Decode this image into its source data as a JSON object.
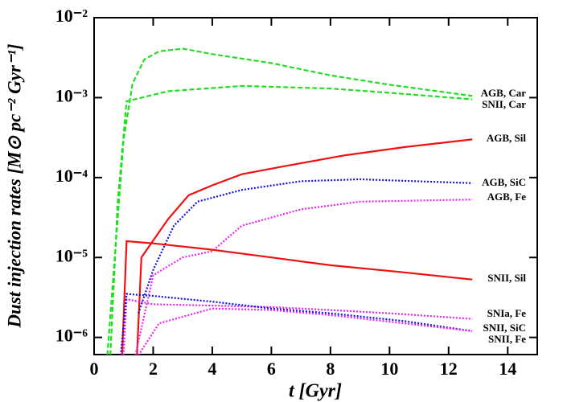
{
  "chart_data": {
    "type": "line",
    "x_label": "t [Gyr]",
    "y_label": "Dust injection rates [M⊙ pc⁻² Gyr⁻¹]",
    "xlim": [
      0,
      15
    ],
    "xticks": [
      0,
      2,
      4,
      6,
      8,
      10,
      12,
      14
    ],
    "ylim": [
      6.1e-07,
      0.01
    ],
    "log_y": true,
    "yticks": [
      {
        "value": 0.01,
        "label": "10⁻²"
      },
      {
        "value": 0.001,
        "label": "10⁻³"
      },
      {
        "value": 0.0001,
        "label": "10⁻⁴"
      },
      {
        "value": 1e-05,
        "label": "10⁻⁵"
      },
      {
        "value": 1e-06,
        "label": "10⁻⁶"
      }
    ],
    "series": [
      {
        "name": "AGB, Car",
        "color": "#22dd22",
        "line_style": "dashed",
        "x": [
          0.45,
          0.7,
          1.0,
          1.3,
          1.7,
          2.2,
          3,
          4,
          6,
          8,
          10,
          12.8
        ],
        "values": [
          6e-07,
          1e-05,
          0.0003,
          0.0015,
          0.003,
          0.0038,
          0.0041,
          0.0035,
          0.0027,
          0.0019,
          0.00145,
          0.00105
        ]
      },
      {
        "name": "SNII, Car",
        "color": "#22dd22",
        "line_style": "dashed",
        "x": [
          0.55,
          0.8,
          1.1,
          2.5,
          5,
          8,
          10,
          12.8
        ],
        "values": [
          6e-07,
          5e-05,
          0.0009,
          0.0012,
          0.0014,
          0.0013,
          0.00115,
          0.00095
        ]
      },
      {
        "name": "AGB, Sil",
        "color": "#ee1111",
        "line_style": "solid",
        "x": [
          1.45,
          1.6,
          2.5,
          3.2,
          4,
          5,
          6.5,
          8.5,
          10.5,
          12.8
        ],
        "values": [
          6e-07,
          1e-05,
          3e-05,
          6e-05,
          8e-05,
          0.00011,
          0.00014,
          0.00019,
          0.00024,
          0.0003
        ]
      },
      {
        "name": "AGB, SiC",
        "color": "#1111dd",
        "line_style": "dotted",
        "x": [
          1.5,
          2,
          2.7,
          3.5,
          5,
          7,
          9,
          12.8
        ],
        "values": [
          2e-06,
          7e-06,
          2.5e-05,
          5e-05,
          7e-05,
          9e-05,
          9.5e-05,
          8.5e-05
        ]
      },
      {
        "name": "AGB, Fe",
        "color": "#ee22ee",
        "line_style": "dotted",
        "x": [
          1.4,
          2,
          3,
          4,
          5,
          7,
          9,
          12.8
        ],
        "values": [
          6e-07,
          6e-06,
          1e-05,
          1.2e-05,
          2.5e-05,
          4e-05,
          5e-05,
          5.3e-05
        ]
      },
      {
        "name": "SNII, Sil",
        "color": "#ee1111",
        "line_style": "solid",
        "x": [
          0.95,
          1.1,
          2,
          4,
          6,
          8,
          10.5,
          12.8
        ],
        "values": [
          6e-07,
          1.6e-05,
          1.5e-05,
          1.25e-05,
          1e-05,
          8e-06,
          6.5e-06,
          5.3e-06
        ]
      },
      {
        "name": "SNIa, Fe",
        "color": "#ee22ee",
        "line_style": "dotted",
        "x": [
          1.0,
          1.1,
          2,
          4,
          6,
          8,
          10,
          12.8
        ],
        "values": [
          6e-07,
          3e-06,
          2.6e-06,
          2.5e-06,
          2.4e-06,
          2.2e-06,
          2e-06,
          1.7e-06
        ]
      },
      {
        "name": "SNII, SiC",
        "color": "#1111dd",
        "line_style": "dotted",
        "x": [
          0.9,
          1.1,
          2,
          4,
          6,
          8,
          10.5,
          12.8
        ],
        "values": [
          6e-07,
          3.5e-06,
          3.3e-06,
          2.8e-06,
          2.3e-06,
          2e-06,
          1.6e-06,
          1.2e-06
        ]
      },
      {
        "name": "SNII, Fe",
        "color": "#ee22ee",
        "line_style": "dotted",
        "x": [
          1.5,
          2.2,
          4,
          6,
          8,
          10.5,
          12.8
        ],
        "values": [
          6e-07,
          1.5e-06,
          2.3e-06,
          2.2e-06,
          1.9e-06,
          1.5e-06,
          1.2e-06
        ]
      }
    ]
  }
}
